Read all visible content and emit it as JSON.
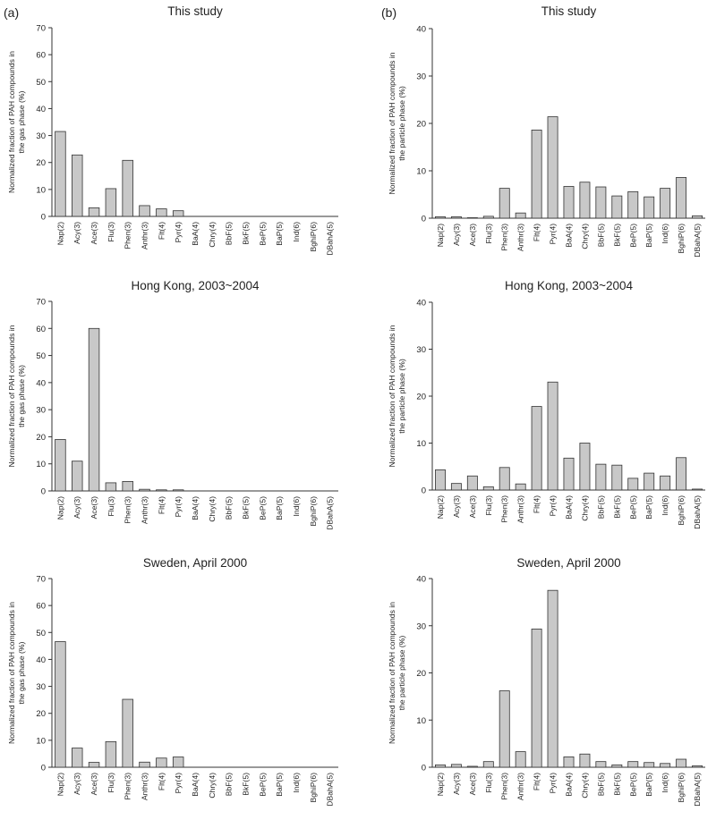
{
  "panel_labels": [
    "(a)",
    "(b)"
  ],
  "colors": {
    "bar_fill": "#c8c8c8",
    "bar_stroke": "#333333",
    "axis": "#333333",
    "text": "#222222"
  },
  "chart_data": [
    {
      "type": "bar",
      "title": "This study",
      "ylabel": [
        "Normalized fraction of PAH compounds in",
        "the gas phase (%)"
      ],
      "ylim": [
        0,
        70
      ],
      "yticks": [
        0,
        10,
        20,
        30,
        40,
        50,
        60,
        70
      ],
      "categories": [
        "Nap(2)",
        "Acy(3)",
        "Ace(3)",
        "Flu(3)",
        "Phen(3)",
        "Anthr(3)",
        "Flt(4)",
        "Pyr(4)",
        "BaA(4)",
        "Chry(4)",
        "BbF(5)",
        "BkF(5)",
        "BeP(5)",
        "BaP(5)",
        "Ind(6)",
        "BghiP(6)",
        "DBahA(5)"
      ],
      "values": [
        31.5,
        22.8,
        3.2,
        10.3,
        20.8,
        4.0,
        2.8,
        2.1,
        0,
        0,
        0,
        0,
        0,
        0,
        0,
        0,
        0
      ]
    },
    {
      "type": "bar",
      "title": "This study",
      "ylabel": [
        "Normalized fraction of PAH compounds in",
        "the particle phase (%)"
      ],
      "ylim": [
        0,
        40
      ],
      "yticks": [
        0,
        10,
        20,
        30,
        40
      ],
      "categories": [
        "Nap(2)",
        "Acy(3)",
        "Ace(3)",
        "Flu(3)",
        "Phen(3)",
        "Anthr(3)",
        "Flt(4)",
        "Pyr(4)",
        "BaA(4)",
        "Chry(4)",
        "BbF(5)",
        "BkF(5)",
        "BeP(5)",
        "BaP(5)",
        "Ind(6)",
        "BghiP(6)",
        "DBahA(5)"
      ],
      "values": [
        0.3,
        0.3,
        0.1,
        0.4,
        6.3,
        1.1,
        18.6,
        21.4,
        6.7,
        7.6,
        6.6,
        4.7,
        5.6,
        4.5,
        6.3,
        8.6,
        0.5
      ]
    },
    {
      "type": "bar",
      "title": "Hong Kong, 2003~2004",
      "ylabel": [
        "Normalized fraction of PAH compounds in",
        "the gas phase (%)"
      ],
      "ylim": [
        0,
        70
      ],
      "yticks": [
        0,
        10,
        20,
        30,
        40,
        50,
        60,
        70
      ],
      "categories": [
        "Nap(2)",
        "Acy(3)",
        "Ace(3)",
        "Flu(3)",
        "Phen(3)",
        "Anthr(3)",
        "Flt(4)",
        "Pyr(4)",
        "BaA(4)",
        "Chry(4)",
        "BbF(5)",
        "BkF(5)",
        "BeP(5)",
        "BaP(5)",
        "Ind(6)",
        "BghiP(6)",
        "DBahA(5)"
      ],
      "values": [
        19.0,
        11.0,
        60.0,
        3.0,
        3.5,
        0.6,
        0.4,
        0.4,
        0,
        0,
        0,
        0,
        0,
        0,
        0,
        0,
        0
      ]
    },
    {
      "type": "bar",
      "title": "Hong Kong, 2003~2004",
      "ylabel": [
        "Normalized fraction of PAH compounds in",
        "the particle phase (%)"
      ],
      "ylim": [
        0,
        40
      ],
      "yticks": [
        0,
        10,
        20,
        30,
        40
      ],
      "categories": [
        "Nap(2)",
        "Acy(3)",
        "Ace(3)",
        "Flu(3)",
        "Phen(3)",
        "Anthr(3)",
        "Flt(4)",
        "Pyr(4)",
        "BaA(4)",
        "Chry(4)",
        "BbF(5)",
        "BkF(5)",
        "BeP(5)",
        "BaP(5)",
        "Ind(6)",
        "BghiP(6)",
        "DBahA(5)"
      ],
      "values": [
        4.3,
        1.4,
        3.0,
        0.7,
        4.8,
        1.3,
        17.8,
        23.0,
        6.8,
        10.0,
        5.5,
        5.3,
        2.5,
        3.6,
        3.0,
        6.9,
        0.2
      ]
    },
    {
      "type": "bar",
      "title": "Sweden, April 2000",
      "ylabel": [
        "Normalized fraction of PAH compounds in",
        "the gas phase (%)"
      ],
      "ylim": [
        0,
        70
      ],
      "yticks": [
        0,
        10,
        20,
        30,
        40,
        50,
        60,
        70
      ],
      "categories": [
        "Nap(2)",
        "Acy(3)",
        "Ace(3)",
        "Flu(3)",
        "Phen(3)",
        "Anthr(3)",
        "Flt(4)",
        "Pyr(4)",
        "BaA(4)",
        "Chry(4)",
        "BbF(5)",
        "BkF(5)",
        "BeP(5)",
        "BaP(5)",
        "Ind(6)",
        "BghiP(6)",
        "DBahA(5)"
      ],
      "values": [
        46.6,
        7.1,
        1.8,
        9.5,
        25.2,
        1.9,
        3.4,
        3.8,
        0,
        0,
        0,
        0,
        0,
        0,
        0,
        0,
        0
      ]
    },
    {
      "type": "bar",
      "title": "Sweden, April 2000",
      "ylabel": [
        "Normalized fraction of PAH compounds in",
        "the particle phase (%)"
      ],
      "ylim": [
        0,
        40
      ],
      "yticks": [
        0,
        10,
        20,
        30,
        40
      ],
      "categories": [
        "Nap(2)",
        "Acy(3)",
        "Ace(3)",
        "Flu(3)",
        "Phen(3)",
        "Anthr(3)",
        "Flt(4)",
        "Pyr(4)",
        "BaA(4)",
        "Chry(4)",
        "BbF(5)",
        "BkF(5)",
        "BeP(5)",
        "BaP(5)",
        "Ind(6)",
        "BghiP(6)",
        "DBahA(5)"
      ],
      "values": [
        0.5,
        0.6,
        0.2,
        1.2,
        16.2,
        3.3,
        29.3,
        37.5,
        2.2,
        2.8,
        1.2,
        0.5,
        1.2,
        1.0,
        0.8,
        1.7,
        0.3
      ]
    }
  ]
}
